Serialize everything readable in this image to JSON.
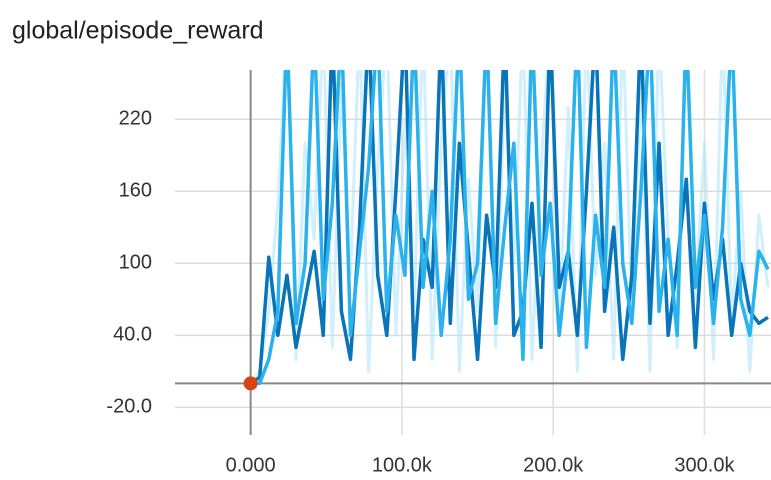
{
  "chart_data": {
    "type": "line",
    "title": "global/episode_reward",
    "x": [
      0,
      6000,
      12000,
      18000,
      24000,
      30000,
      36000,
      42000,
      48000,
      54000,
      60000,
      66000,
      72000,
      78000,
      84000,
      90000,
      96000,
      102000,
      108000,
      114000,
      120000,
      126000,
      132000,
      138000,
      144000,
      150000,
      156000,
      162000,
      168000,
      174000,
      180000,
      186000,
      192000,
      198000,
      204000,
      210000,
      216000,
      222000,
      228000,
      234000,
      240000,
      246000,
      252000,
      258000,
      264000,
      270000,
      276000,
      282000,
      288000,
      294000,
      300000,
      306000,
      312000,
      318000,
      324000,
      330000,
      336000,
      342000
    ],
    "series": [
      {
        "color": "#b3e5fc",
        "values": [
          0,
          10,
          60,
          150,
          300,
          20,
          200,
          120,
          300,
          30,
          250,
          90,
          300,
          10,
          180,
          300,
          40,
          220,
          60,
          300,
          20,
          200,
          300,
          10,
          170,
          60,
          300,
          30,
          250,
          100,
          300,
          20,
          180,
          300,
          50,
          230,
          10,
          300,
          90,
          200,
          20,
          300,
          60,
          250,
          10,
          300,
          120,
          30,
          300,
          70,
          200,
          20,
          300,
          50,
          160,
          10,
          140,
          80
        ]
      },
      {
        "color": "#0a74b8",
        "values": [
          0,
          5,
          105,
          40,
          90,
          30,
          70,
          110,
          40,
          300,
          60,
          20,
          130,
          300,
          90,
          40,
          160,
          300,
          20,
          120,
          80,
          300,
          50,
          200,
          110,
          20,
          140,
          80,
          300,
          40,
          60,
          150,
          30,
          300,
          80,
          110,
          40,
          160,
          300,
          60,
          130,
          20,
          90,
          300,
          50,
          200,
          40,
          100,
          170,
          30,
          150,
          70,
          120,
          40,
          100,
          60,
          50,
          55
        ]
      },
      {
        "color": "#2bb2ec",
        "values": [
          0,
          0,
          20,
          60,
          300,
          50,
          100,
          300,
          70,
          150,
          300,
          40,
          110,
          180,
          300,
          60,
          140,
          90,
          300,
          80,
          160,
          40,
          120,
          300,
          70,
          100,
          300,
          50,
          130,
          200,
          20,
          300,
          90,
          150,
          40,
          110,
          300,
          30,
          140,
          80,
          300,
          100,
          50,
          160,
          300,
          60,
          120,
          40,
          300,
          80,
          140,
          50,
          130,
          300,
          70,
          40,
          110,
          95
        ]
      }
    ],
    "highlight": {
      "x": 0,
      "y": 0,
      "color": "#d84315"
    },
    "xlim": [
      -50000,
      344000
    ],
    "ylim": [
      -43,
      261
    ],
    "xticks": [
      {
        "value": 0,
        "label": "0.000"
      },
      {
        "value": 100000,
        "label": "100.0k"
      },
      {
        "value": 200000,
        "label": "200.0k"
      },
      {
        "value": 300000,
        "label": "300.0k"
      }
    ],
    "yticks": [
      {
        "value": -20,
        "label": "-20.0"
      },
      {
        "value": 40,
        "label": "40.0"
      },
      100,
      160,
      220
    ],
    "grid": true
  }
}
